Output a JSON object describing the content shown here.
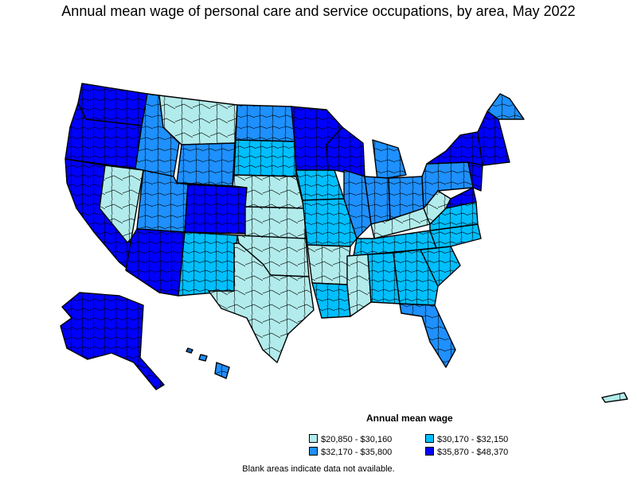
{
  "title": "Annual mean wage of personal care and service occupations, by area, May 2022",
  "legend": {
    "title": "Annual mean wage",
    "items": [
      {
        "label": "$20,850 - $30,160",
        "color": "#b2ebeb"
      },
      {
        "label": "$30,170 - $32,150",
        "color": "#00bfff"
      },
      {
        "label": "$32,170 - $35,800",
        "color": "#1e90ff"
      },
      {
        "label": "$35,870 - $48,370",
        "color": "#0000ff"
      }
    ]
  },
  "note": "Blank areas indicate data not available."
}
